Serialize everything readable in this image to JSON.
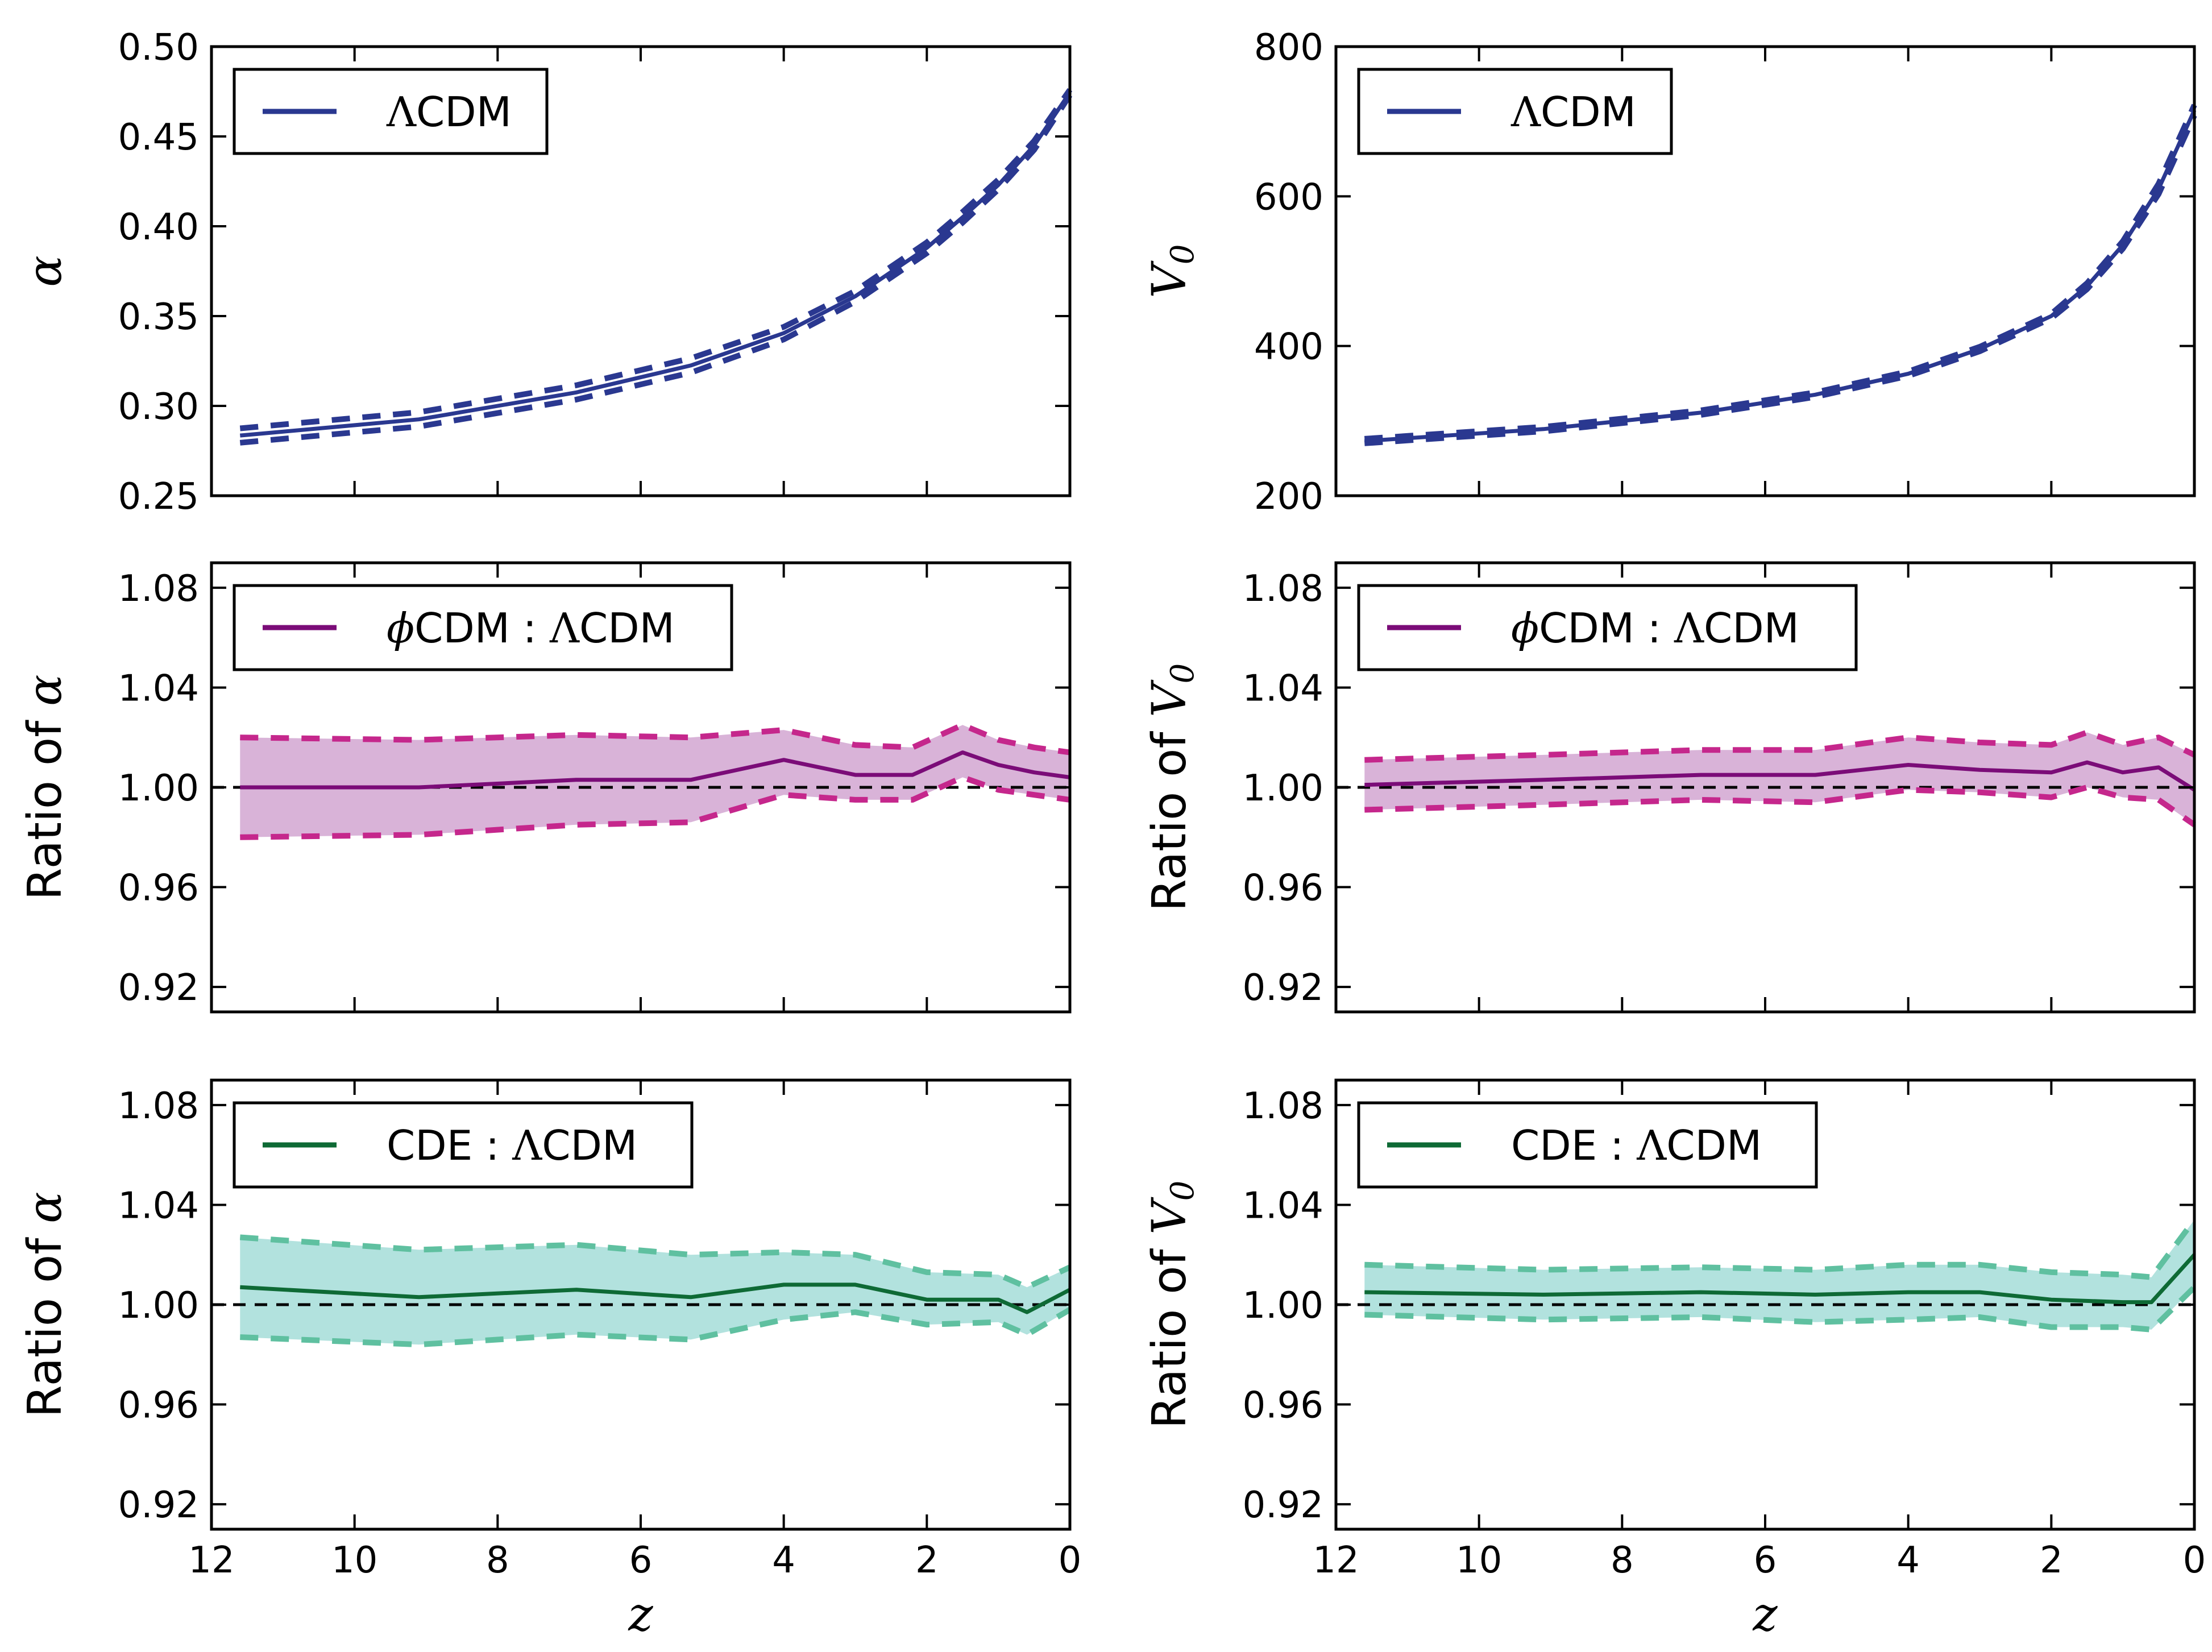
{
  "chart_data": [
    {
      "id": "alpha-lcdm",
      "type": "line",
      "ylabel": "α",
      "ylabel_prefix": "",
      "ylim": [
        0.25,
        0.5
      ],
      "yticks": [
        0.25,
        0.3,
        0.35,
        0.4,
        0.45,
        0.5
      ],
      "ytick_labels": [
        "0.25",
        "0.30",
        "0.35",
        "0.40",
        "0.45",
        "0.50"
      ],
      "xlim": [
        12,
        0
      ],
      "xticks": [
        12,
        10,
        8,
        6,
        4,
        2,
        0
      ],
      "xtick_labels": [
        "12",
        "10",
        "8",
        "6",
        "4",
        "2",
        "0"
      ],
      "show_xticklabels": false,
      "xlabel": "",
      "legend": {
        "prefix": "",
        "model": "",
        "sep": "",
        "ref_symbol": "Λ",
        "ref_text": "CDM"
      },
      "reference_line": null,
      "colors": {
        "line": "#2a3890",
        "band_edge": "#2a3890",
        "band_fill": "none"
      },
      "series": [
        {
          "name": "ΛCDM",
          "x": [
            11.6,
            9.1,
            6.9,
            5.3,
            4.0,
            3.0,
            2.0,
            1.5,
            1.0,
            0.5,
            0.0
          ],
          "values": [
            0.2835,
            0.2925,
            0.3075,
            0.3225,
            0.3405,
            0.361,
            0.388,
            0.405,
            0.423,
            0.445,
            0.4745
          ],
          "upper": [
            0.2875,
            0.2965,
            0.3115,
            0.3265,
            0.344,
            0.364,
            0.391,
            0.408,
            0.426,
            0.4475,
            0.476
          ],
          "lower": [
            0.2795,
            0.2885,
            0.3035,
            0.3185,
            0.337,
            0.358,
            0.385,
            0.402,
            0.4205,
            0.4425,
            0.473
          ]
        }
      ]
    },
    {
      "id": "v0-lcdm",
      "type": "line",
      "ylabel": "V",
      "ylabel_sub": "0",
      "ylabel_prefix": "",
      "ylim": [
        200,
        800
      ],
      "yticks": [
        200,
        400,
        600,
        800
      ],
      "ytick_labels": [
        "200",
        "400",
        "600",
        "800"
      ],
      "xlim": [
        12,
        0
      ],
      "xticks": [
        12,
        10,
        8,
        6,
        4,
        2,
        0
      ],
      "xtick_labels": [
        "12",
        "10",
        "8",
        "6",
        "4",
        "2",
        "0"
      ],
      "show_xticklabels": false,
      "xlabel": "",
      "legend": {
        "prefix": "",
        "model": "",
        "sep": "",
        "ref_symbol": "Λ",
        "ref_text": "CDM"
      },
      "reference_line": null,
      "colors": {
        "line": "#2a3890",
        "band_edge": "#2a3890",
        "band_fill": "none"
      },
      "series": [
        {
          "name": "ΛCDM",
          "x": [
            11.6,
            9.1,
            6.9,
            5.3,
            4.0,
            3.0,
            2.0,
            1.5,
            1.0,
            0.5,
            0.0
          ],
          "values": [
            273,
            289,
            311,
            335,
            363,
            396,
            440,
            480,
            535,
            610,
            715
          ],
          "upper": [
            276,
            292,
            314,
            338,
            366,
            399,
            443,
            484,
            540,
            617,
            722
          ],
          "lower": [
            270,
            286,
            308,
            332,
            360,
            393,
            437,
            476,
            530,
            603,
            708
          ]
        }
      ]
    },
    {
      "id": "alpha-phicdm-ratio",
      "type": "line",
      "ylabel": "α",
      "ylabel_prefix": "Ratio of ",
      "ylim": [
        0.91,
        1.09
      ],
      "yticks": [
        0.92,
        0.96,
        1.0,
        1.04,
        1.08
      ],
      "ytick_labels": [
        "0.92",
        "0.96",
        "1.00",
        "1.04",
        "1.08"
      ],
      "xlim": [
        12,
        0
      ],
      "xticks": [
        12,
        10,
        8,
        6,
        4,
        2,
        0
      ],
      "xtick_labels": [
        "12",
        "10",
        "8",
        "6",
        "4",
        "2",
        "0"
      ],
      "show_xticklabels": false,
      "xlabel": "",
      "legend": {
        "prefix": "ϕ",
        "model": "CDM",
        "sep": " : ",
        "ref_symbol": "Λ",
        "ref_text": "CDM"
      },
      "reference_line": 1.0,
      "colors": {
        "line": "#7b0c78",
        "band_edge": "#c5278c",
        "band_fill": "#d9b3d8"
      },
      "series": [
        {
          "name": "ϕCDM : ΛCDM",
          "x": [
            11.6,
            9.1,
            6.9,
            5.3,
            4.0,
            3.0,
            2.2,
            1.5,
            1.0,
            0.5,
            0.0
          ],
          "values": [
            1.0,
            1.0,
            1.003,
            1.003,
            1.011,
            1.005,
            1.005,
            1.014,
            1.009,
            1.006,
            1.004
          ],
          "upper": [
            1.02,
            1.019,
            1.021,
            1.02,
            1.023,
            1.017,
            1.016,
            1.025,
            1.019,
            1.016,
            1.014
          ],
          "lower": [
            0.98,
            0.981,
            0.985,
            0.986,
            0.997,
            0.995,
            0.995,
            1.004,
            0.999,
            0.997,
            0.995
          ]
        }
      ]
    },
    {
      "id": "v0-phicdm-ratio",
      "type": "line",
      "ylabel": "V",
      "ylabel_sub": "0",
      "ylabel_prefix": "Ratio of ",
      "ylim": [
        0.91,
        1.09
      ],
      "yticks": [
        0.92,
        0.96,
        1.0,
        1.04,
        1.08
      ],
      "ytick_labels": [
        "0.92",
        "0.96",
        "1.00",
        "1.04",
        "1.08"
      ],
      "xlim": [
        12,
        0
      ],
      "xticks": [
        12,
        10,
        8,
        6,
        4,
        2,
        0
      ],
      "xtick_labels": [
        "12",
        "10",
        "8",
        "6",
        "4",
        "2",
        "0"
      ],
      "show_xticklabels": false,
      "xlabel": "",
      "legend": {
        "prefix": "ϕ",
        "model": "CDM",
        "sep": " : ",
        "ref_symbol": "Λ",
        "ref_text": "CDM"
      },
      "reference_line": 1.0,
      "colors": {
        "line": "#7b0c78",
        "band_edge": "#c5278c",
        "band_fill": "#d9b3d8"
      },
      "series": [
        {
          "name": "ϕCDM : ΛCDM",
          "x": [
            11.6,
            9.1,
            6.9,
            5.3,
            4.0,
            3.0,
            2.0,
            1.5,
            1.0,
            0.5,
            0.0
          ],
          "values": [
            1.001,
            1.003,
            1.005,
            1.005,
            1.009,
            1.007,
            1.006,
            1.01,
            1.006,
            1.008,
            0.999
          ],
          "upper": [
            1.011,
            1.013,
            1.015,
            1.015,
            1.02,
            1.018,
            1.017,
            1.022,
            1.017,
            1.02,
            1.013
          ],
          "lower": [
            0.991,
            0.993,
            0.995,
            0.994,
            0.999,
            0.998,
            0.996,
            1.0,
            0.996,
            0.995,
            0.985
          ]
        }
      ]
    },
    {
      "id": "alpha-cde-ratio",
      "type": "line",
      "ylabel": "α",
      "ylabel_prefix": "Ratio of ",
      "ylim": [
        0.91,
        1.09
      ],
      "yticks": [
        0.92,
        0.96,
        1.0,
        1.04,
        1.08
      ],
      "ytick_labels": [
        "0.92",
        "0.96",
        "1.00",
        "1.04",
        "1.08"
      ],
      "xlim": [
        12,
        0
      ],
      "xticks": [
        12,
        10,
        8,
        6,
        4,
        2,
        0
      ],
      "xtick_labels": [
        "12",
        "10",
        "8",
        "6",
        "4",
        "2",
        "0"
      ],
      "show_xticklabels": true,
      "xlabel": "z",
      "legend": {
        "prefix": "",
        "model": "CDE",
        "sep": " : ",
        "ref_symbol": "Λ",
        "ref_text": "CDM"
      },
      "reference_line": 1.0,
      "colors": {
        "line": "#0e6a35",
        "band_edge": "#5fc0a0",
        "band_fill": "#b2e2de"
      },
      "series": [
        {
          "name": "CDE : ΛCDM",
          "x": [
            11.6,
            9.1,
            6.9,
            5.3,
            4.0,
            3.0,
            2.0,
            1.0,
            0.6,
            0.0
          ],
          "values": [
            1.007,
            1.003,
            1.006,
            1.003,
            1.008,
            1.008,
            1.002,
            1.002,
            0.997,
            1.006
          ],
          "upper": [
            1.027,
            1.022,
            1.024,
            1.02,
            1.021,
            1.02,
            1.013,
            1.012,
            1.007,
            1.015
          ],
          "lower": [
            0.987,
            0.984,
            0.988,
            0.986,
            0.994,
            0.997,
            0.992,
            0.993,
            0.988,
            0.998
          ]
        }
      ]
    },
    {
      "id": "v0-cde-ratio",
      "type": "line",
      "ylabel": "V",
      "ylabel_sub": "0",
      "ylabel_prefix": "Ratio of ",
      "ylim": [
        0.91,
        1.09
      ],
      "yticks": [
        0.92,
        0.96,
        1.0,
        1.04,
        1.08
      ],
      "ytick_labels": [
        "0.92",
        "0.96",
        "1.00",
        "1.04",
        "1.08"
      ],
      "xlim": [
        12,
        0
      ],
      "xticks": [
        12,
        10,
        8,
        6,
        4,
        2,
        0
      ],
      "xtick_labels": [
        "12",
        "10",
        "8",
        "6",
        "4",
        "2",
        "0"
      ],
      "show_xticklabels": true,
      "xlabel": "z",
      "legend": {
        "prefix": "",
        "model": "CDE",
        "sep": " : ",
        "ref_symbol": "Λ",
        "ref_text": "CDM"
      },
      "reference_line": 1.0,
      "colors": {
        "line": "#0e6a35",
        "band_edge": "#5fc0a0",
        "band_fill": "#b2e2de"
      },
      "series": [
        {
          "name": "CDE : ΛCDM",
          "x": [
            11.6,
            9.1,
            6.9,
            5.3,
            4.0,
            3.0,
            2.0,
            1.0,
            0.6,
            0.0
          ],
          "values": [
            1.005,
            1.004,
            1.005,
            1.004,
            1.005,
            1.005,
            1.002,
            1.001,
            1.001,
            1.02
          ],
          "upper": [
            1.016,
            1.014,
            1.015,
            1.014,
            1.016,
            1.016,
            1.013,
            1.012,
            1.011,
            1.034
          ],
          "lower": [
            0.996,
            0.994,
            0.995,
            0.993,
            0.994,
            0.995,
            0.991,
            0.991,
            0.99,
            1.007
          ]
        }
      ]
    }
  ]
}
